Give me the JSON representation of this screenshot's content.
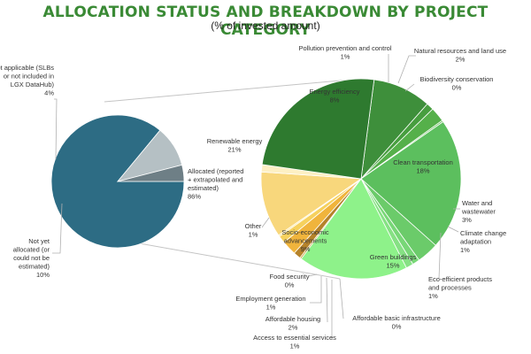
{
  "chart": {
    "title": "ALLOCATION STATUS AND BREAKDOWN BY PROJECT CATEGORY",
    "subtitle": "(% of invested amount)"
  },
  "colors": {
    "title": "#3a8a35",
    "leader_line": "#b0b0b0",
    "connector": "#c4c4c4"
  },
  "chart_data": [
    {
      "type": "pie",
      "slices": [
        {
          "label": "Allocated (reported + extrapolated and estimated)",
          "value": 86,
          "value_label": "86%",
          "color": "#2d6c84"
        },
        {
          "label": "Not yet allocated (or could not be estimated)",
          "value": 10,
          "value_label": "10%",
          "color": "#b5c0c4"
        },
        {
          "label": "Not applicable (SLBs or not included in LGX DataHub)",
          "value": 4,
          "value_label": "4%",
          "color": "#6e7f86"
        }
      ]
    },
    {
      "type": "pie",
      "slices": [
        {
          "label": "Energy efficiency",
          "value": 8,
          "value_label": "8%",
          "color": "#3e8f3b"
        },
        {
          "label": "Pollution prevention and control",
          "value": 1,
          "value_label": "1%",
          "color": "#479e3f"
        },
        {
          "label": "Natural resources and land use",
          "value": 2,
          "value_label": "2%",
          "color": "#55b04a"
        },
        {
          "label": "Biodiversity conservation",
          "value": 0,
          "value_label": "0%",
          "color": "#62b957"
        },
        {
          "label": "Clean transportation",
          "value": 18,
          "value_label": "18%",
          "color": "#5cbf5e"
        },
        {
          "label": "Water and wastewater",
          "value": 3,
          "value_label": "3%",
          "color": "#6bcb6a"
        },
        {
          "label": "Climate change adaptation",
          "value": 1,
          "value_label": "1%",
          "color": "#78d777"
        },
        {
          "label": "Eco-efficient products and processes",
          "value": 1,
          "value_label": "1%",
          "color": "#86e184"
        },
        {
          "label": "Green buildings",
          "value": 15,
          "value_label": "15%",
          "color": "#8ef28a"
        },
        {
          "label": "Affordable basic infrastructure",
          "value": 0,
          "value_label": "0%",
          "color": "#c9a03a"
        },
        {
          "label": "Access to essential services",
          "value": 1,
          "value_label": "1%",
          "color": "#b5822a"
        },
        {
          "label": "Affordable housing",
          "value": 2,
          "value_label": "2%",
          "color": "#f0b43c"
        },
        {
          "label": "Employment generation",
          "value": 1,
          "value_label": "1%",
          "color": "#f6d15d"
        },
        {
          "label": "Food security",
          "value": 0,
          "value_label": "0%",
          "color": "#fbe38a"
        },
        {
          "label": "Socio-economic advancements",
          "value": 9,
          "value_label": "9%",
          "color": "#f8d77c"
        },
        {
          "label": "Other",
          "value": 1,
          "value_label": "1%",
          "color": "#fdf0c4"
        },
        {
          "label": "Renewable energy",
          "value": 21,
          "value_label": "21%",
          "color": "#2e7a2f"
        }
      ]
    }
  ]
}
